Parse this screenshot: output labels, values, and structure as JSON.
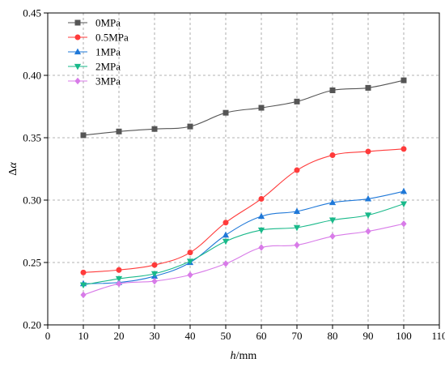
{
  "chart_data": {
    "type": "line",
    "xlabel_italic": "h",
    "xlabel_unit": "/mm",
    "ylabel_prefix": "Δ",
    "ylabel_italic": "α",
    "xlim": [
      0,
      110
    ],
    "ylim": [
      0.2,
      0.45
    ],
    "x_ticks": [
      0,
      10,
      20,
      30,
      40,
      50,
      60,
      70,
      80,
      90,
      100,
      110
    ],
    "x_tick_labels": [
      "0",
      "10",
      "20",
      "30",
      "40",
      "50",
      "60",
      "70",
      "80",
      "90",
      "100",
      "110"
    ],
    "y_ticks": [
      0.2,
      0.25,
      0.3,
      0.35,
      0.4,
      0.45
    ],
    "y_tick_labels": [
      "0.20",
      "0.25",
      "0.30",
      "0.35",
      "0.40",
      "0.45"
    ],
    "grid": true,
    "legend_position": "top-left",
    "x": [
      10,
      20,
      30,
      40,
      50,
      60,
      70,
      80,
      90,
      100
    ],
    "series": [
      {
        "name": "0MPa",
        "color": "#555555",
        "marker": "square",
        "values": [
          0.352,
          0.355,
          0.357,
          0.359,
          0.37,
          0.374,
          0.379,
          0.388,
          0.39,
          0.396
        ]
      },
      {
        "name": "0.5MPa",
        "color": "#ff3b3b",
        "marker": "circle",
        "values": [
          0.242,
          0.244,
          0.248,
          0.258,
          0.282,
          0.301,
          0.324,
          0.336,
          0.339,
          0.341
        ]
      },
      {
        "name": "1MPa",
        "color": "#1f78d8",
        "marker": "triangle-up",
        "values": [
          0.233,
          0.234,
          0.239,
          0.25,
          0.272,
          0.287,
          0.291,
          0.298,
          0.301,
          0.307
        ]
      },
      {
        "name": "2MPa",
        "color": "#19b98a",
        "marker": "triangle-down",
        "values": [
          0.232,
          0.237,
          0.241,
          0.251,
          0.267,
          0.276,
          0.278,
          0.284,
          0.288,
          0.297
        ]
      },
      {
        "name": "3MPa",
        "color": "#d87be8",
        "marker": "diamond",
        "values": [
          0.224,
          0.233,
          0.235,
          0.24,
          0.249,
          0.262,
          0.264,
          0.271,
          0.275,
          0.281
        ]
      }
    ]
  }
}
